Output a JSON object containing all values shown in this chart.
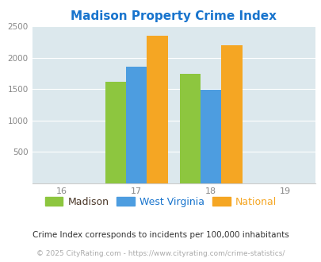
{
  "title": "Madison Property Crime Index",
  "title_color": "#1874CD",
  "years": [
    2017,
    2018
  ],
  "x_ticks": [
    2016,
    2017,
    2018,
    2019
  ],
  "x_tick_labels": [
    "16",
    "17",
    "18",
    "19"
  ],
  "madison": [
    1620,
    1740
  ],
  "west_virginia": [
    1850,
    1490
  ],
  "national": [
    2350,
    2200
  ],
  "colors": {
    "madison": "#8dc63f",
    "west_virginia": "#4d9de0",
    "national": "#f5a623"
  },
  "ylim": [
    0,
    2500
  ],
  "yticks": [
    0,
    500,
    1000,
    1500,
    2000,
    2500
  ],
  "background_color": "#dce8ed",
  "legend_labels": [
    "Madison",
    "West Virginia",
    "National"
  ],
  "legend_label_colors": [
    "#4a3728",
    "#1874CD",
    "#f5a623"
  ],
  "footnote1": "Crime Index corresponds to incidents per 100,000 inhabitants",
  "footnote2": "© 2025 CityRating.com - https://www.cityrating.com/crime-statistics/",
  "bar_width": 0.28
}
